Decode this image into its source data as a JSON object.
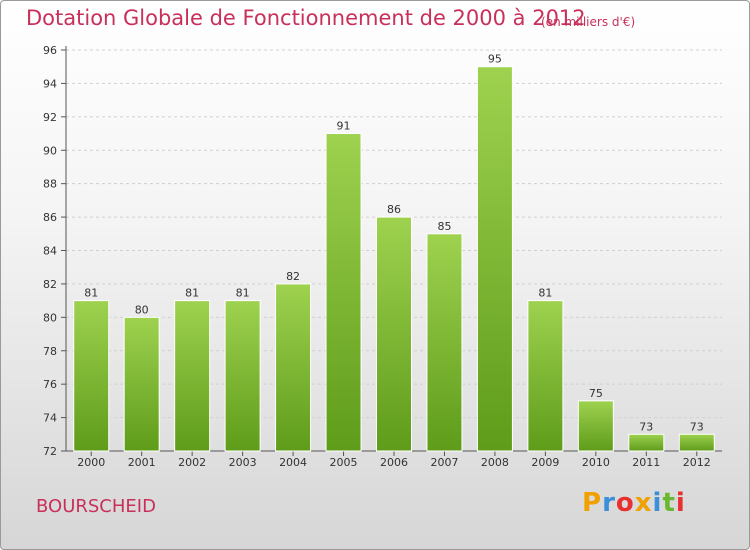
{
  "chart_data": {
    "type": "bar",
    "title": "Dotation Globale de Fonctionnement de 2000 à 2012",
    "subtitle": "(en milliers d'€)",
    "categories": [
      "2000",
      "2001",
      "2002",
      "2003",
      "2004",
      "2005",
      "2006",
      "2007",
      "2008",
      "2009",
      "2010",
      "2011",
      "2012"
    ],
    "values": [
      81,
      80,
      81,
      81,
      82,
      91,
      86,
      85,
      95,
      81,
      75,
      73,
      73
    ],
    "ylim": [
      72,
      96
    ],
    "yticks": [
      72,
      74,
      76,
      78,
      80,
      82,
      84,
      86,
      88,
      90,
      92,
      94,
      96
    ],
    "grid": true,
    "bar_color": "#7cb82f",
    "title_color": "#c8305a"
  },
  "place": "BOURSCHEID",
  "logo": {
    "text": "Proxiti",
    "colors": [
      "#f0a000",
      "#3a8fd8",
      "#e83030",
      "#f0a000",
      "#3a8fd8",
      "#6ab830",
      "#e83030"
    ]
  }
}
